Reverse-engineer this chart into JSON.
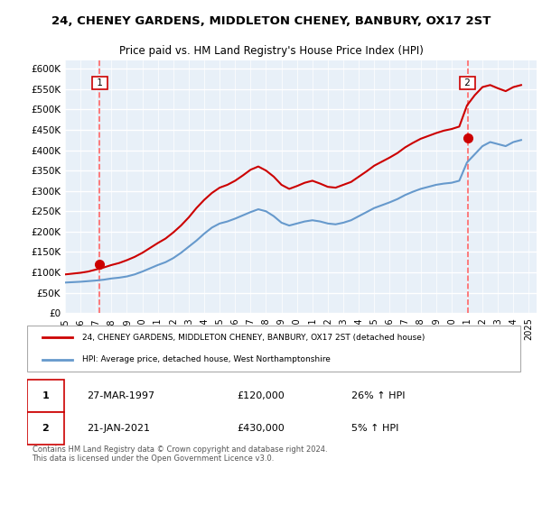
{
  "title": "24, CHENEY GARDENS, MIDDLETON CHENEY, BANBURY, OX17 2ST",
  "subtitle": "Price paid vs. HM Land Registry's House Price Index (HPI)",
  "ylabel_ticks": [
    "£0",
    "£50K",
    "£100K",
    "£150K",
    "£200K",
    "£250K",
    "£300K",
    "£350K",
    "£400K",
    "£450K",
    "£500K",
    "£550K",
    "£600K"
  ],
  "ytick_vals": [
    0,
    50000,
    100000,
    150000,
    200000,
    250000,
    300000,
    350000,
    400000,
    450000,
    500000,
    550000,
    600000
  ],
  "xlim_start": 1995.0,
  "xlim_end": 2025.5,
  "ylim": [
    0,
    620000
  ],
  "background_color": "#e8f0f8",
  "plot_bg_color": "#e8f0f8",
  "grid_color": "#ffffff",
  "red_line_color": "#cc0000",
  "blue_line_color": "#6699cc",
  "marker_color": "#cc0000",
  "dashed_color": "#ff6666",
  "sale1_x": 1997.23,
  "sale1_y": 120000,
  "sale1_label": "1",
  "sale2_x": 2021.05,
  "sale2_y": 430000,
  "sale2_label": "2",
  "legend1_text": "24, CHENEY GARDENS, MIDDLETON CHENEY, BANBURY, OX17 2ST (detached house)",
  "legend2_text": "HPI: Average price, detached house, West Northamptonshire",
  "note1_label": "1",
  "note1_date": "27-MAR-1997",
  "note1_price": "£120,000",
  "note1_hpi": "26% ↑ HPI",
  "note2_label": "2",
  "note2_date": "21-JAN-2021",
  "note2_price": "£430,000",
  "note2_hpi": "5% ↑ HPI",
  "footer": "Contains HM Land Registry data © Crown copyright and database right 2024.\nThis data is licensed under the Open Government Licence v3.0.",
  "hpi_years": [
    1995,
    1995.5,
    1996,
    1996.5,
    1997,
    1997.5,
    1998,
    1998.5,
    1999,
    1999.5,
    2000,
    2000.5,
    2001,
    2001.5,
    2002,
    2002.5,
    2003,
    2003.5,
    2004,
    2004.5,
    2005,
    2005.5,
    2006,
    2006.5,
    2007,
    2007.5,
    2008,
    2008.5,
    2009,
    2009.5,
    2010,
    2010.5,
    2011,
    2011.5,
    2012,
    2012.5,
    2013,
    2013.5,
    2014,
    2014.5,
    2015,
    2015.5,
    2016,
    2016.5,
    2017,
    2017.5,
    2018,
    2018.5,
    2019,
    2019.5,
    2020,
    2020.5,
    2021,
    2021.5,
    2022,
    2022.5,
    2023,
    2023.5,
    2024,
    2024.5
  ],
  "hpi_values": [
    75000,
    76000,
    77000,
    78500,
    80000,
    82000,
    85000,
    87000,
    90000,
    95000,
    102000,
    110000,
    118000,
    125000,
    135000,
    148000,
    163000,
    178000,
    195000,
    210000,
    220000,
    225000,
    232000,
    240000,
    248000,
    255000,
    250000,
    238000,
    222000,
    215000,
    220000,
    225000,
    228000,
    225000,
    220000,
    218000,
    222000,
    228000,
    238000,
    248000,
    258000,
    265000,
    272000,
    280000,
    290000,
    298000,
    305000,
    310000,
    315000,
    318000,
    320000,
    325000,
    370000,
    390000,
    410000,
    420000,
    415000,
    410000,
    420000,
    425000
  ],
  "price_years": [
    1995,
    1995.5,
    1996,
    1996.5,
    1997,
    1997.5,
    1998,
    1998.5,
    1999,
    1999.5,
    2000,
    2000.5,
    2001,
    2001.5,
    2002,
    2002.5,
    2003,
    2003.5,
    2004,
    2004.5,
    2005,
    2005.5,
    2006,
    2006.5,
    2007,
    2007.5,
    2008,
    2008.5,
    2009,
    2009.5,
    2010,
    2010.5,
    2011,
    2011.5,
    2012,
    2012.5,
    2013,
    2013.5,
    2014,
    2014.5,
    2015,
    2015.5,
    2016,
    2016.5,
    2017,
    2017.5,
    2018,
    2018.5,
    2019,
    2019.5,
    2020,
    2020.5,
    2021,
    2021.5,
    2022,
    2022.5,
    2023,
    2023.5,
    2024,
    2024.5
  ],
  "price_values": [
    95000,
    97000,
    99000,
    102000,
    107000,
    112000,
    118000,
    123000,
    130000,
    138000,
    148000,
    160000,
    172000,
    183000,
    198000,
    215000,
    235000,
    258000,
    278000,
    295000,
    308000,
    315000,
    325000,
    338000,
    352000,
    360000,
    350000,
    335000,
    315000,
    305000,
    312000,
    320000,
    325000,
    318000,
    310000,
    308000,
    315000,
    322000,
    335000,
    348000,
    362000,
    372000,
    382000,
    393000,
    407000,
    418000,
    428000,
    435000,
    442000,
    448000,
    452000,
    458000,
    510000,
    535000,
    555000,
    560000,
    552000,
    545000,
    555000,
    560000
  ],
  "xtick_years": [
    1995,
    1996,
    1997,
    1998,
    1999,
    2000,
    2001,
    2002,
    2003,
    2004,
    2005,
    2006,
    2007,
    2008,
    2009,
    2010,
    2011,
    2012,
    2013,
    2014,
    2015,
    2016,
    2017,
    2018,
    2019,
    2020,
    2021,
    2022,
    2023,
    2024,
    2025
  ]
}
